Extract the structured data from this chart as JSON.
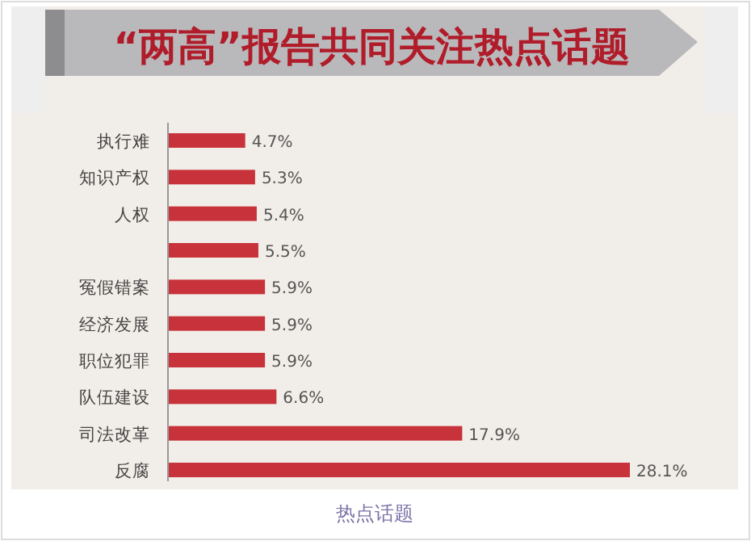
{
  "chart_data": {
    "type": "bar",
    "orientation": "horizontal",
    "title": "“两高”报告共同关注热点话题",
    "xlabel": "热点话题",
    "categories": [
      "执行难",
      "知识产权",
      "人权",
      null,
      "冤假错案",
      "经济发展",
      "职位犯罪",
      "队伍建设",
      "司法改革",
      "反腐"
    ],
    "values": [
      4.7,
      5.3,
      5.4,
      5.5,
      5.9,
      5.9,
      5.9,
      6.6,
      17.9,
      28.1
    ],
    "value_labels": [
      "4.7%",
      "5.3%",
      "5.4%",
      "5.5%",
      "5.9%",
      "5.9%",
      "5.9%",
      "6.6%",
      "17.9%",
      "28.1%"
    ],
    "color": "#c8323a"
  }
}
